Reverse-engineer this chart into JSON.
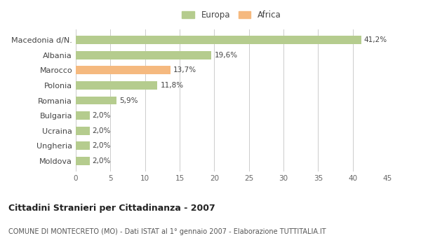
{
  "categories": [
    "Macedonia d/N.",
    "Albania",
    "Marocco",
    "Polonia",
    "Romania",
    "Bulgaria",
    "Ucraina",
    "Ungheria",
    "Moldova"
  ],
  "values": [
    41.2,
    19.6,
    13.7,
    11.8,
    5.9,
    2.0,
    2.0,
    2.0,
    2.0
  ],
  "labels": [
    "41,2%",
    "19,6%",
    "13,7%",
    "11,8%",
    "5,9%",
    "2,0%",
    "2,0%",
    "2,0%",
    "2,0%"
  ],
  "colors": [
    "#b5cc8e",
    "#b5cc8e",
    "#f5b97f",
    "#b5cc8e",
    "#b5cc8e",
    "#b5cc8e",
    "#b5cc8e",
    "#b5cc8e",
    "#b5cc8e"
  ],
  "europa_color": "#b5cc8e",
  "africa_color": "#f5b97f",
  "title": "Cittadini Stranieri per Cittadinanza - 2007",
  "subtitle": "COMUNE DI MONTECRETO (MO) - Dati ISTAT al 1° gennaio 2007 - Elaborazione TUTTITALIA.IT",
  "xlim": [
    0,
    45
  ],
  "xticks": [
    0,
    5,
    10,
    15,
    20,
    25,
    30,
    35,
    40,
    45
  ],
  "background_color": "#ffffff",
  "grid_color": "#cccccc",
  "bar_height": 0.55
}
